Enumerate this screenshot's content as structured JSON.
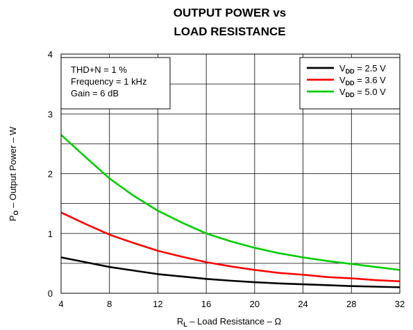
{
  "chart_data": {
    "type": "line",
    "title": [
      "OUTPUT POWER vs",
      "LOAD RESISTANCE"
    ],
    "xlabel": {
      "main": "R",
      "sub": "L",
      "rest": " – Load Resistance – Ω"
    },
    "ylabel": {
      "main": "P",
      "sub": "O",
      "rest": " – Output Power – W"
    },
    "xlim": [
      4,
      32
    ],
    "ylim": [
      0,
      4
    ],
    "xticks": [
      4,
      8,
      12,
      16,
      20,
      24,
      28,
      32
    ],
    "yticks": [
      0,
      1,
      2,
      3,
      4
    ],
    "grid": true,
    "legend_position": "top-right",
    "annotations": [
      "THD+N = 1 %",
      "Frequency = 1 kHz",
      "Gain = 6 dB"
    ],
    "series": [
      {
        "name": {
          "main": "V",
          "sub": "DD",
          "rest": " = 2.5 V"
        },
        "color": "#000000",
        "x": [
          4,
          6,
          8,
          10,
          12,
          14,
          16,
          18,
          20,
          22,
          24,
          26,
          28,
          30,
          32
        ],
        "y": [
          0.6,
          0.52,
          0.44,
          0.38,
          0.32,
          0.28,
          0.24,
          0.21,
          0.185,
          0.165,
          0.15,
          0.135,
          0.12,
          0.11,
          0.1
        ]
      },
      {
        "name": {
          "main": "V",
          "sub": "DD",
          "rest": " = 3.6 V"
        },
        "color": "#ff0000",
        "x": [
          4,
          6,
          8,
          10,
          12,
          14,
          16,
          18,
          20,
          22,
          24,
          26,
          28,
          30,
          32
        ],
        "y": [
          1.35,
          1.16,
          0.98,
          0.84,
          0.71,
          0.61,
          0.52,
          0.45,
          0.39,
          0.34,
          0.31,
          0.27,
          0.25,
          0.22,
          0.2
        ]
      },
      {
        "name": {
          "main": "V",
          "sub": "DD",
          "rest": " = 5.0 V"
        },
        "color": "#00cc00",
        "x": [
          4,
          6,
          8,
          10,
          12,
          14,
          16,
          18,
          20,
          22,
          24,
          26,
          28,
          30,
          32
        ],
        "y": [
          2.65,
          2.28,
          1.92,
          1.63,
          1.38,
          1.18,
          1.0,
          0.87,
          0.76,
          0.67,
          0.6,
          0.54,
          0.49,
          0.44,
          0.39
        ]
      }
    ]
  }
}
